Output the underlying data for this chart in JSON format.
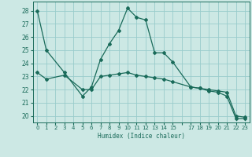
{
  "xlabel": "Humidex (Indice chaleur)",
  "bg_color": "#cce8e4",
  "line_color": "#1a6b5a",
  "grid_color": "#99cccc",
  "xlim": [
    -0.5,
    23.5
  ],
  "ylim": [
    19.5,
    28.7
  ],
  "yticks": [
    20,
    21,
    22,
    23,
    24,
    25,
    26,
    27,
    28
  ],
  "xtick_labels": [
    "0",
    "1",
    "2",
    "3",
    "4",
    "5",
    "6",
    "7",
    "8",
    "9",
    "10",
    "11",
    "12",
    "13",
    "14",
    "15",
    "",
    "17",
    "18",
    "19",
    "20",
    "21",
    "22",
    "23"
  ],
  "xtick_pos": [
    0,
    1,
    2,
    3,
    4,
    5,
    6,
    7,
    8,
    9,
    10,
    11,
    12,
    13,
    14,
    15,
    16,
    17,
    18,
    19,
    20,
    21,
    22,
    23
  ],
  "line1_x": [
    0,
    1,
    3,
    5,
    6,
    7,
    8,
    9,
    10,
    11,
    12,
    13,
    14,
    15,
    17,
    18,
    19,
    20,
    21,
    22,
    23
  ],
  "line1_y": [
    28.0,
    25.0,
    23.3,
    21.5,
    22.2,
    24.3,
    25.5,
    26.5,
    28.2,
    27.5,
    27.3,
    24.8,
    24.8,
    24.1,
    22.2,
    22.1,
    21.9,
    21.8,
    21.5,
    19.8,
    19.8
  ],
  "line2_x": [
    0,
    1,
    3,
    5,
    6,
    7,
    8,
    9,
    10,
    11,
    12,
    13,
    14,
    15,
    17,
    18,
    19,
    20,
    21,
    22,
    23
  ],
  "line2_y": [
    23.3,
    22.8,
    23.1,
    22.0,
    22.0,
    23.0,
    23.1,
    23.2,
    23.3,
    23.1,
    23.0,
    22.9,
    22.8,
    22.6,
    22.2,
    22.1,
    22.0,
    21.9,
    21.8,
    20.0,
    19.9
  ]
}
